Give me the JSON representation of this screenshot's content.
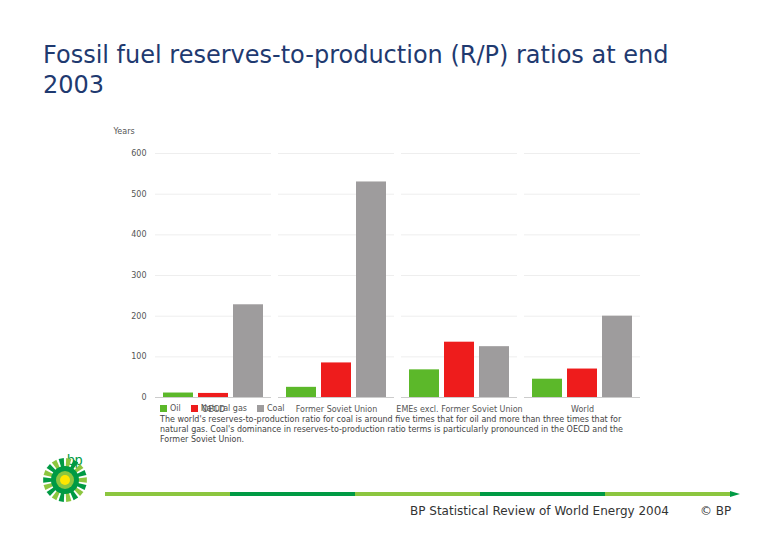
{
  "chart_data": {
    "type": "bar",
    "title": "Fossil fuel reserves-to-production (R/P) ratios at end 2003",
    "y_label": "Years",
    "categories": [
      "OECD",
      "Former Soviet Union",
      "EMEs excl. Former Soviet Union",
      "World"
    ],
    "series": [
      {
        "name": "Oil",
        "color": "#5cb82a",
        "values": [
          11,
          25,
          68,
          45
        ]
      },
      {
        "name": "Natural gas",
        "color": "#ee1c1c",
        "values": [
          10,
          85,
          136,
          70
        ]
      },
      {
        "name": "Coal",
        "color": "#9e9c9d",
        "values": [
          228,
          530,
          125,
          200
        ]
      }
    ],
    "ylim": [
      0,
      600
    ],
    "yticks": [
      0,
      100,
      200,
      300,
      400,
      500,
      600
    ],
    "grid": true,
    "legend": "bottom",
    "annotations": [
      "The world's reserves-to-production ratio for coal is around five times that for oil and more than three times that for natural gas. Coal's dominance in reserves-to-production ratio terms is particularly pronounced in the OECD and the Former Soviet Union."
    ]
  },
  "footer": {
    "logo": "bp",
    "source": "BP Statistical Review of World Energy 2004",
    "copyright": "© BP"
  }
}
